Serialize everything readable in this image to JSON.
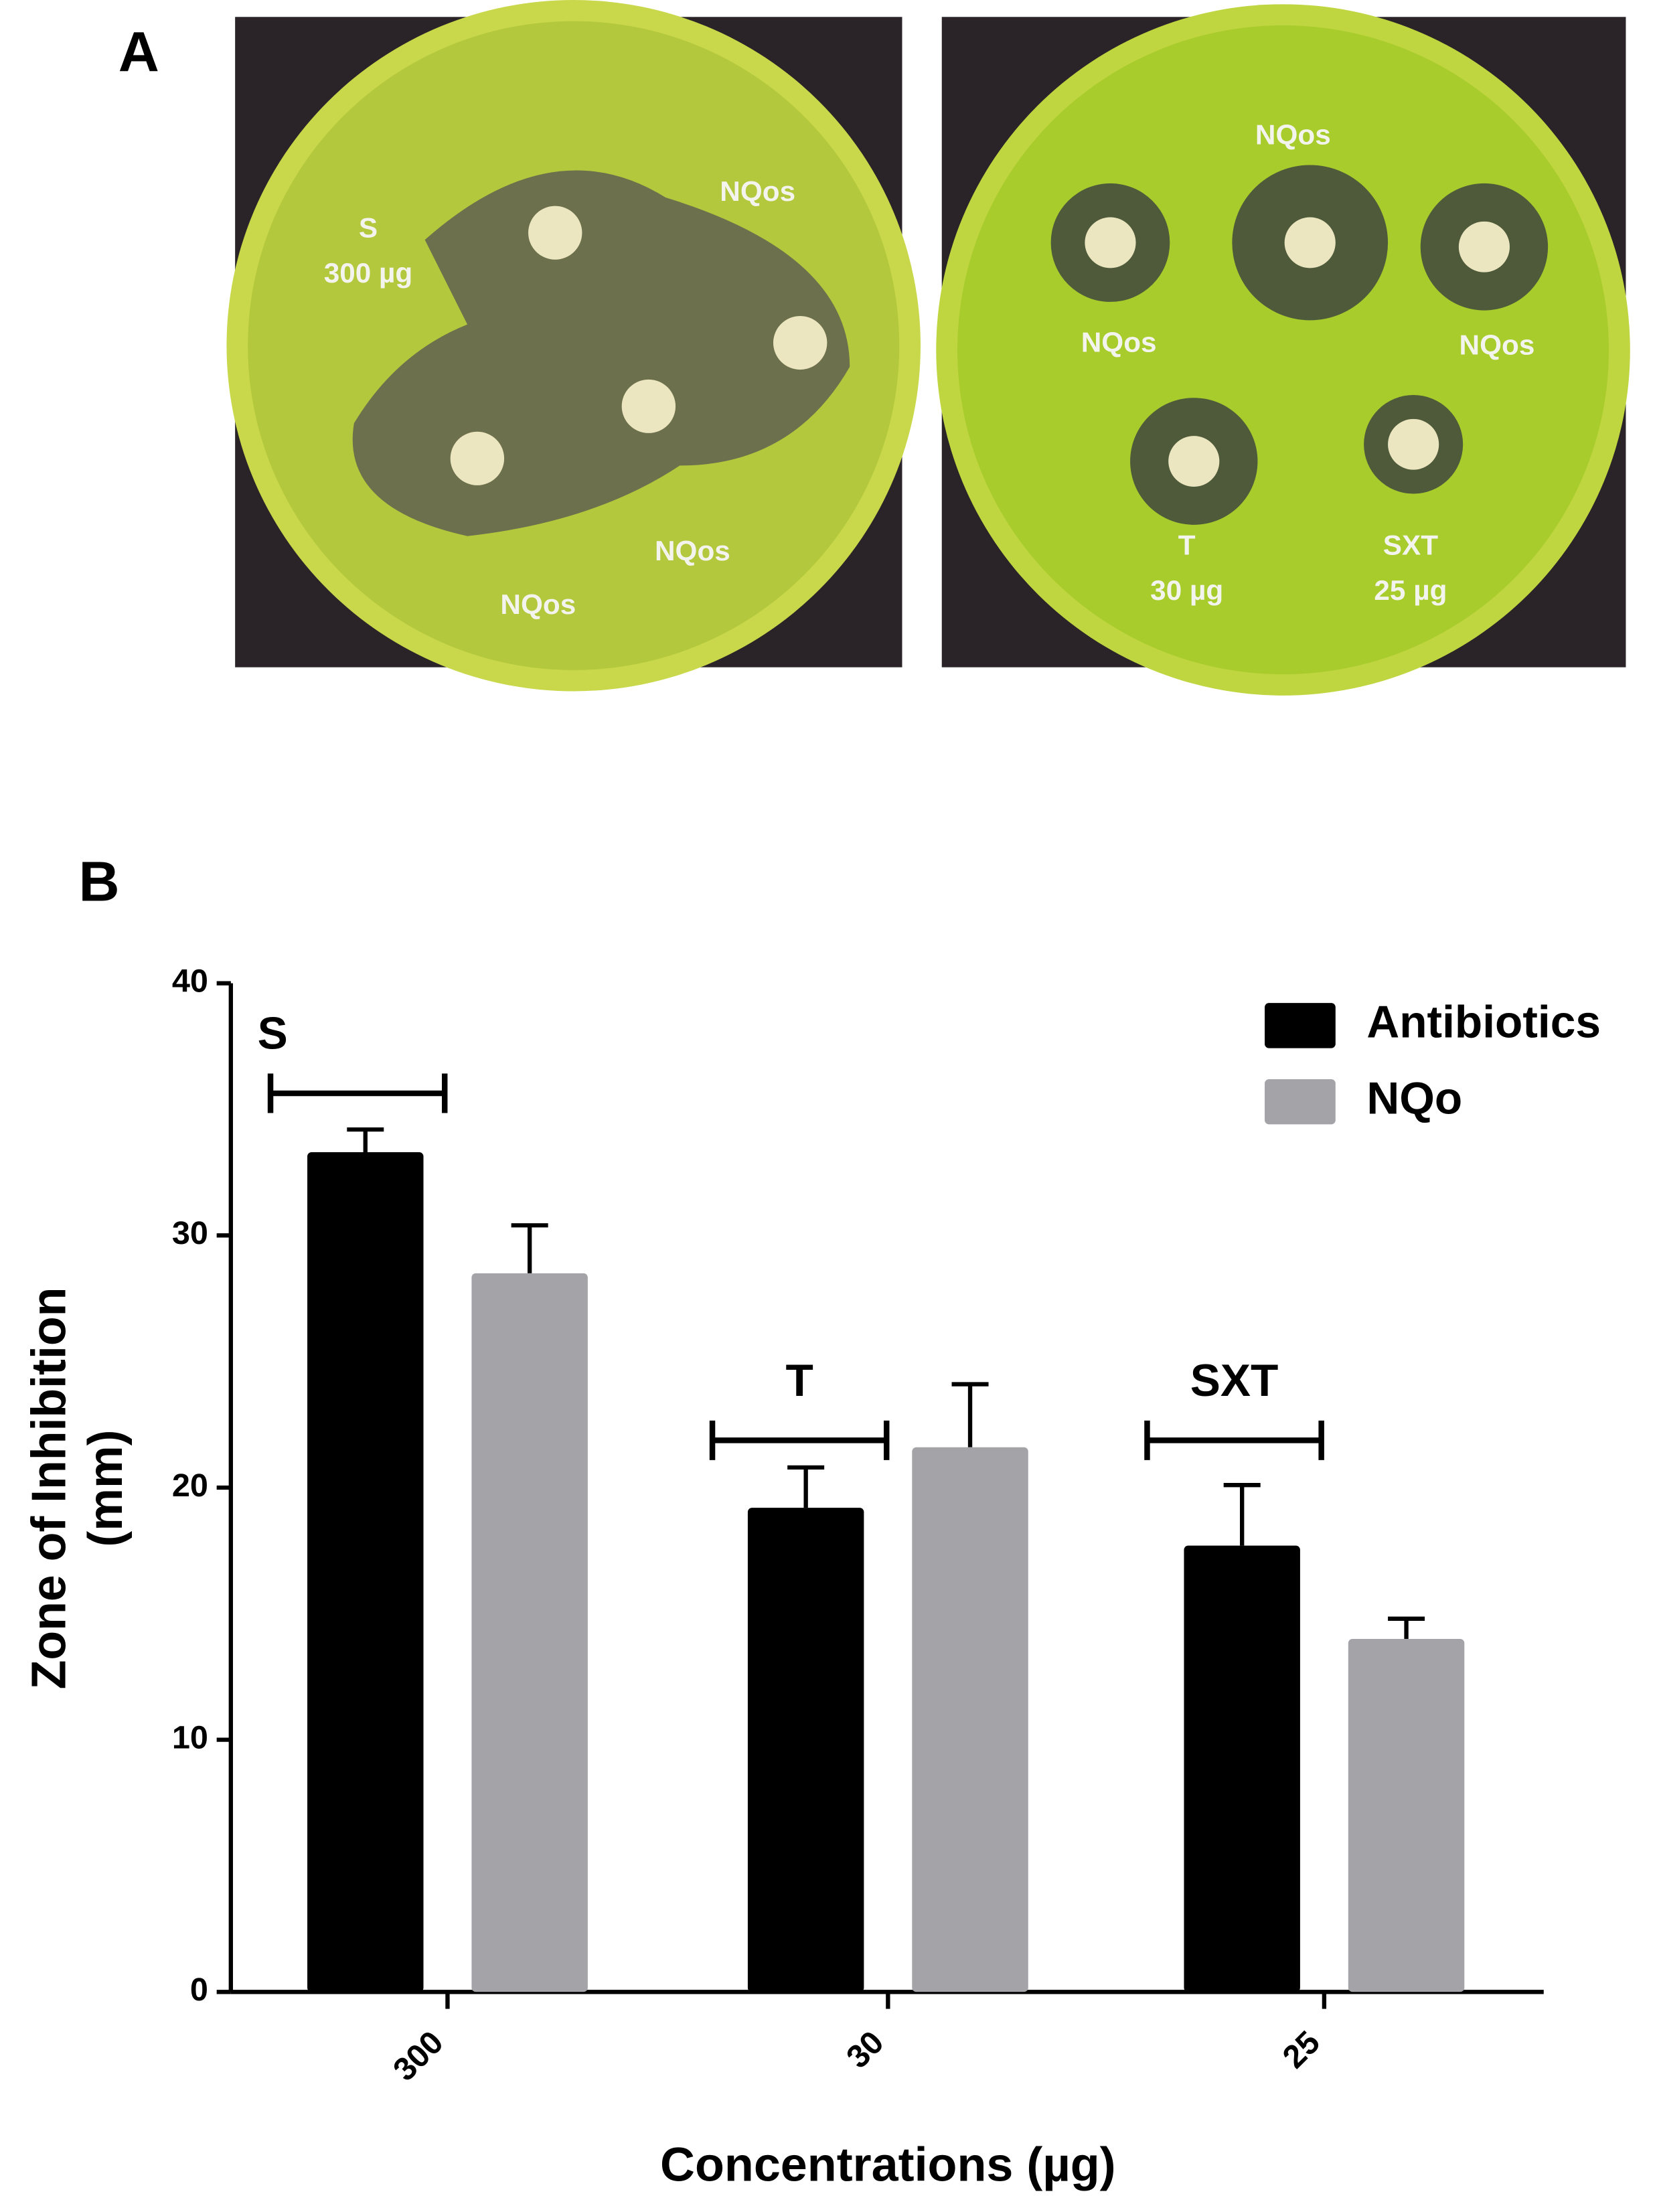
{
  "panel_a": {
    "label": "A",
    "plates": [
      {
        "labels": [
          "S",
          "300 µg",
          "NQos",
          "NQos",
          "NQos"
        ]
      },
      {
        "labels": [
          "NQos",
          "NQos",
          "NQos",
          "T",
          "30 µg",
          "SXT",
          "25 µg"
        ]
      }
    ]
  },
  "chart_data": {
    "type": "bar",
    "panel_label": "B",
    "x_label": "Concentrations (µg)",
    "y_label": [
      "Zone of Inhibition",
      "(mm)"
    ],
    "categories": [
      "300",
      "30",
      "25"
    ],
    "series": [
      {
        "name": "Antibiotics",
        "color": "#000000",
        "values": [
          33.3,
          19.2,
          17.7
        ],
        "errors": [
          0.9,
          1.6,
          2.4
        ]
      },
      {
        "name": "NQo",
        "color": "#a3a3a8",
        "values": [
          28.5,
          21.6,
          14.0
        ],
        "errors": [
          1.9,
          2.5,
          0.8
        ]
      }
    ],
    "annotations": [
      "S",
      "T",
      "SXT"
    ],
    "ylim": [
      0,
      40
    ],
    "yticks": [
      0,
      10,
      20,
      30,
      40
    ],
    "legend": "top-right"
  }
}
